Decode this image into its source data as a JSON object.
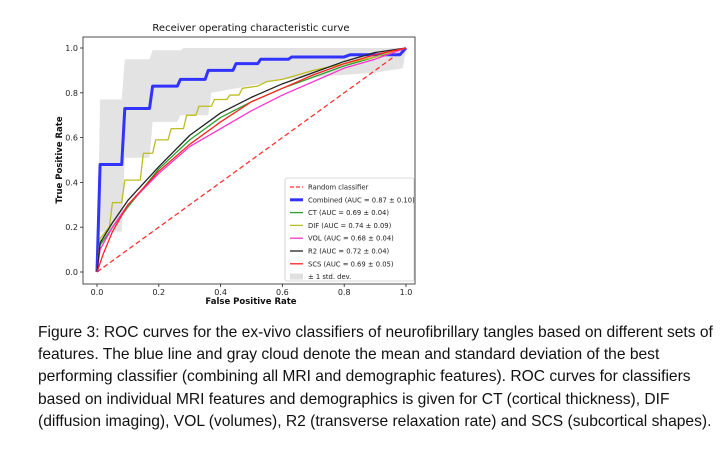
{
  "caption": "Figure 3: ROC curves for the ex-vivo classifiers of neurofibrillary tangles based on different sets of features. The blue line and gray cloud denote the mean and standard deviation of the best performing classifier (combining all MRI and demographic features). ROC curves for classifiers based on individual MRI features and demographics is given for CT (cortical thickness), DIF (diffusion imaging), VOL (volumes), R2 (transverse relaxation rate) and SCS (subcortical shapes).",
  "chart_data": {
    "type": "line",
    "title": "Receiver operating characteristic curve",
    "xlabel": "False Positive Rate",
    "ylabel": "True Positive Rate",
    "xlim": [
      -0.045,
      1.03
    ],
    "ylim": [
      -0.05,
      1.05
    ],
    "xticks": [
      "0.0",
      "0.2",
      "0.4",
      "0.6",
      "0.8",
      "1.0"
    ],
    "yticks": [
      "0.0",
      "0.2",
      "0.4",
      "0.6",
      "0.8",
      "1.0"
    ],
    "grid": false,
    "legend_placement": "lower-right",
    "band": {
      "name": "± 1 std. dev.",
      "color": "#cccccc",
      "upper": [
        [
          0,
          0
        ],
        [
          0.01,
          0.77
        ],
        [
          0.08,
          0.77
        ],
        [
          0.09,
          0.95
        ],
        [
          0.17,
          0.95
        ],
        [
          0.18,
          0.99
        ],
        [
          0.27,
          0.99
        ],
        [
          0.28,
          1.0
        ],
        [
          1,
          1
        ]
      ],
      "lower": [
        [
          0,
          0
        ],
        [
          0.01,
          0.18
        ],
        [
          0.08,
          0.18
        ],
        [
          0.09,
          0.51
        ],
        [
          0.17,
          0.51
        ],
        [
          0.18,
          0.67
        ],
        [
          0.26,
          0.67
        ],
        [
          0.27,
          0.7
        ],
        [
          0.36,
          0.7
        ],
        [
          0.37,
          0.8
        ],
        [
          0.45,
          0.82
        ],
        [
          0.6,
          0.86
        ],
        [
          0.8,
          0.88
        ],
        [
          0.9,
          0.89
        ],
        [
          0.99,
          0.91
        ],
        [
          1,
          1
        ]
      ]
    },
    "series": [
      {
        "name": "Random classifier",
        "color": "#ff3333",
        "dash": true,
        "width": 1.3,
        "points": [
          [
            0,
            0
          ],
          [
            1,
            1
          ]
        ]
      },
      {
        "name": "Combined (AUC = 0.87 ± 0.10)",
        "color": "#3333ff",
        "width": 3,
        "points": [
          [
            0,
            0
          ],
          [
            0.01,
            0.48
          ],
          [
            0.08,
            0.48
          ],
          [
            0.09,
            0.73
          ],
          [
            0.17,
            0.73
          ],
          [
            0.18,
            0.83
          ],
          [
            0.26,
            0.83
          ],
          [
            0.27,
            0.86
          ],
          [
            0.35,
            0.86
          ],
          [
            0.36,
            0.9
          ],
          [
            0.44,
            0.9
          ],
          [
            0.45,
            0.93
          ],
          [
            0.52,
            0.93
          ],
          [
            0.53,
            0.95
          ],
          [
            0.62,
            0.95
          ],
          [
            0.63,
            0.96
          ],
          [
            0.8,
            0.96
          ],
          [
            0.82,
            0.97
          ],
          [
            0.98,
            0.97
          ],
          [
            1,
            1
          ]
        ]
      },
      {
        "name": "CT (AUC = 0.69 ± 0.04)",
        "color": "#2ca02c",
        "width": 1.3,
        "points": [
          [
            0,
            0
          ],
          [
            0.01,
            0.12
          ],
          [
            0.05,
            0.2
          ],
          [
            0.1,
            0.29
          ],
          [
            0.2,
            0.46
          ],
          [
            0.3,
            0.59
          ],
          [
            0.4,
            0.69
          ],
          [
            0.5,
            0.76
          ],
          [
            0.6,
            0.82
          ],
          [
            0.7,
            0.87
          ],
          [
            0.8,
            0.92
          ],
          [
            0.9,
            0.96
          ],
          [
            1,
            1
          ]
        ]
      },
      {
        "name": "DIF (AUC = 0.74 ± 0.09)",
        "color": "#bcbd22",
        "width": 1.3,
        "points": [
          [
            0,
            0
          ],
          [
            0.01,
            0.15
          ],
          [
            0.04,
            0.2
          ],
          [
            0.05,
            0.31
          ],
          [
            0.08,
            0.31
          ],
          [
            0.09,
            0.41
          ],
          [
            0.14,
            0.41
          ],
          [
            0.15,
            0.53
          ],
          [
            0.18,
            0.53
          ],
          [
            0.19,
            0.59
          ],
          [
            0.23,
            0.59
          ],
          [
            0.24,
            0.64
          ],
          [
            0.28,
            0.64
          ],
          [
            0.29,
            0.7
          ],
          [
            0.32,
            0.7
          ],
          [
            0.33,
            0.74
          ],
          [
            0.37,
            0.74
          ],
          [
            0.38,
            0.77
          ],
          [
            0.42,
            0.77
          ],
          [
            0.43,
            0.79
          ],
          [
            0.46,
            0.79
          ],
          [
            0.47,
            0.82
          ],
          [
            0.52,
            0.83
          ],
          [
            0.55,
            0.85
          ],
          [
            0.6,
            0.86
          ],
          [
            0.65,
            0.88
          ],
          [
            0.7,
            0.9
          ],
          [
            0.8,
            0.93
          ],
          [
            0.9,
            0.96
          ],
          [
            1,
            1
          ]
        ]
      },
      {
        "name": "VOL (AUC = 0.68 ± 0.04)",
        "color": "#ff33cc",
        "width": 1.3,
        "points": [
          [
            0,
            0
          ],
          [
            0.01,
            0.1
          ],
          [
            0.05,
            0.2
          ],
          [
            0.1,
            0.3
          ],
          [
            0.2,
            0.44
          ],
          [
            0.3,
            0.56
          ],
          [
            0.4,
            0.64
          ],
          [
            0.5,
            0.72
          ],
          [
            0.6,
            0.79
          ],
          [
            0.7,
            0.85
          ],
          [
            0.8,
            0.91
          ],
          [
            0.9,
            0.95
          ],
          [
            1,
            1
          ]
        ]
      },
      {
        "name": "R2 (AUC = 0.72 ± 0.04)",
        "color": "#222222",
        "width": 1.3,
        "points": [
          [
            0,
            0
          ],
          [
            0.01,
            0.13
          ],
          [
            0.05,
            0.22
          ],
          [
            0.1,
            0.32
          ],
          [
            0.2,
            0.47
          ],
          [
            0.3,
            0.61
          ],
          [
            0.4,
            0.71
          ],
          [
            0.5,
            0.78
          ],
          [
            0.6,
            0.84
          ],
          [
            0.7,
            0.89
          ],
          [
            0.8,
            0.94
          ],
          [
            0.9,
            0.98
          ],
          [
            1,
            1
          ]
        ]
      },
      {
        "name": "SCS (AUC = 0.69 ± 0.05)",
        "color": "#ff2222",
        "width": 1.3,
        "points": [
          [
            0,
            0
          ],
          [
            0.02,
            0.08
          ],
          [
            0.05,
            0.18
          ],
          [
            0.1,
            0.3
          ],
          [
            0.2,
            0.45
          ],
          [
            0.3,
            0.57
          ],
          [
            0.4,
            0.67
          ],
          [
            0.5,
            0.76
          ],
          [
            0.6,
            0.82
          ],
          [
            0.7,
            0.88
          ],
          [
            0.8,
            0.93
          ],
          [
            0.9,
            0.97
          ],
          [
            1,
            1
          ]
        ]
      }
    ]
  }
}
